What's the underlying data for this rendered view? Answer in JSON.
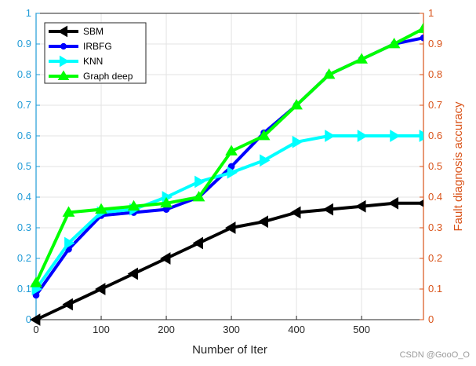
{
  "chart_data": {
    "type": "line",
    "xlabel": "Number of Iter",
    "ylabel_left": "",
    "ylabel_right": "Fault diagnosis accuracy",
    "xlim": [
      0,
      595
    ],
    "ylim": [
      0,
      1
    ],
    "y2lim": [
      0,
      1
    ],
    "x_ticks": [
      0,
      100,
      200,
      300,
      400,
      500
    ],
    "y_ticks": [
      0,
      0.1,
      0.2,
      0.3,
      0.4,
      0.5,
      0.6,
      0.7,
      0.8,
      0.9,
      1
    ],
    "grid": true,
    "legend_position": "top-left",
    "left_axis_color": "#1f9bd7",
    "right_axis_color": "#d95319",
    "series": [
      {
        "name": "SBM",
        "color": "#000000",
        "marker": "triangle-left",
        "x": [
          0,
          50,
          100,
          150,
          200,
          250,
          300,
          350,
          400,
          450,
          500,
          550,
          595
        ],
        "values": [
          0,
          0.05,
          0.1,
          0.15,
          0.2,
          0.25,
          0.3,
          0.32,
          0.35,
          0.36,
          0.37,
          0.38,
          0.38
        ]
      },
      {
        "name": "IRBFG",
        "color": "#0000ff",
        "marker": "circle",
        "x": [
          0,
          50,
          100,
          150,
          200,
          250,
          300,
          350,
          400,
          450,
          500,
          550,
          595
        ],
        "values": [
          0.08,
          0.23,
          0.34,
          0.35,
          0.36,
          0.4,
          0.5,
          0.61,
          0.7,
          0.8,
          0.85,
          0.9,
          0.92
        ]
      },
      {
        "name": "KNN",
        "color": "#00ffff",
        "marker": "triangle-right",
        "x": [
          0,
          50,
          100,
          150,
          200,
          250,
          300,
          350,
          400,
          450,
          500,
          550,
          595
        ],
        "values": [
          0.1,
          0.25,
          0.35,
          0.36,
          0.4,
          0.45,
          0.48,
          0.52,
          0.58,
          0.6,
          0.6,
          0.6,
          0.6
        ]
      },
      {
        "name": "Graph deep",
        "color": "#00ff00",
        "marker": "triangle-up",
        "x": [
          0,
          50,
          100,
          150,
          200,
          250,
          300,
          350,
          400,
          450,
          500,
          550,
          595
        ],
        "values": [
          0.12,
          0.35,
          0.36,
          0.37,
          0.38,
          0.4,
          0.55,
          0.6,
          0.7,
          0.8,
          0.85,
          0.9,
          0.95
        ]
      }
    ]
  },
  "watermark": "CSDN @GooO_O"
}
